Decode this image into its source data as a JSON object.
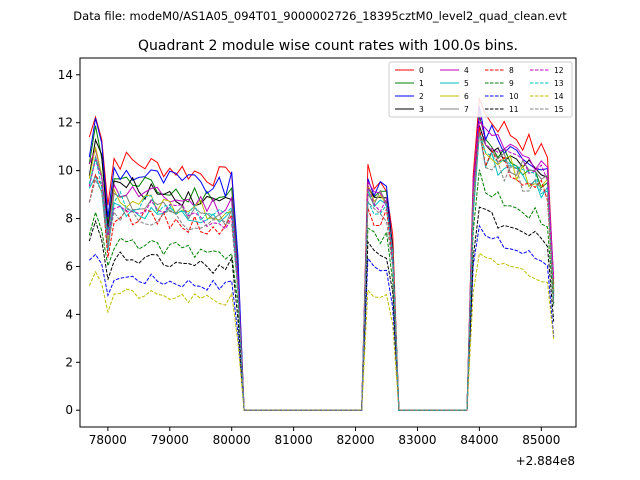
{
  "suptitle": "Data file: modeM0/AS1A05_094T01_9000002726_18395cztM0_level2_quad_clean.evt",
  "chart_data": {
    "type": "line",
    "title": "Quadrant 2 module wise count rates with 100.0s bins.",
    "xlabel": "",
    "ylabel": "",
    "x_offset_label": "+2.884e8",
    "xlim": [
      77550,
      85560
    ],
    "ylim": [
      -0.7,
      14.7
    ],
    "xticks": [
      78000,
      79000,
      80000,
      81000,
      82000,
      83000,
      84000,
      85000
    ],
    "xtick_labels": [
      "78000",
      "79000",
      "80000",
      "81000",
      "82000",
      "83000",
      "84000",
      "85000"
    ],
    "yticks": [
      0,
      2,
      4,
      6,
      8,
      10,
      12,
      14
    ],
    "ytick_labels": [
      "0",
      "2",
      "4",
      "6",
      "8",
      "10",
      "12",
      "14"
    ],
    "grid": false,
    "legend": {
      "placement": "top-right",
      "columns": 4
    },
    "segments": [
      {
        "start": 77700,
        "end": 80100
      },
      {
        "start": 82200,
        "end": 82600
      },
      {
        "start": 83900,
        "end": 85200
      }
    ],
    "series": [
      {
        "name": "0",
        "color": "#ff0000",
        "dash": "solid",
        "s1": 10.5,
        "s2": 9.8,
        "s3": 12.3
      },
      {
        "name": "1",
        "color": "#008000",
        "dash": "solid",
        "s1": 9.6,
        "s2": 9.3,
        "s3": 11.0
      },
      {
        "name": "2",
        "color": "#0000ff",
        "dash": "solid",
        "s1": 10.0,
        "s2": 9.6,
        "s3": 11.6
      },
      {
        "name": "3",
        "color": "#000000",
        "dash": "solid",
        "s1": 9.4,
        "s2": 9.2,
        "s3": 11.1
      },
      {
        "name": "4",
        "color": "#bf00bf",
        "dash": "solid",
        "s1": 9.2,
        "s2": 9.3,
        "s3": 11.5
      },
      {
        "name": "5",
        "color": "#00bfbf",
        "dash": "solid",
        "s1": 8.4,
        "s2": 8.9,
        "s3": 10.5
      },
      {
        "name": "6",
        "color": "#bfbf00",
        "dash": "solid",
        "s1": 8.9,
        "s2": 9.0,
        "s3": 10.8
      },
      {
        "name": "7",
        "color": "#808080",
        "dash": "solid",
        "s1": 8.7,
        "s2": 9.1,
        "s3": 10.9
      },
      {
        "name": "8",
        "color": "#ff0000",
        "dash": "dashed",
        "s1": 8.2,
        "s2": 8.4,
        "s3": 10.6
      },
      {
        "name": "9",
        "color": "#008000",
        "dash": "dashed",
        "s1": 7.0,
        "s2": 7.5,
        "s3": 9.2
      },
      {
        "name": "10",
        "color": "#0000ff",
        "dash": "dashed",
        "s1": 5.6,
        "s2": 6.2,
        "s3": 7.2
      },
      {
        "name": "11",
        "color": "#000000",
        "dash": "dashed",
        "s1": 6.4,
        "s2": 6.8,
        "s3": 8.1
      },
      {
        "name": "12",
        "color": "#bf00bf",
        "dash": "dashed",
        "s1": 8.6,
        "s2": 9.0,
        "s3": 11.3
      },
      {
        "name": "13",
        "color": "#00bfbf",
        "dash": "dashed",
        "s1": 8.8,
        "s2": 8.8,
        "s3": 10.7
      },
      {
        "name": "14",
        "color": "#bfbf00",
        "dash": "dashed",
        "s1": 4.9,
        "s2": 5.0,
        "s3": 6.2
      },
      {
        "name": "15",
        "color": "#808080",
        "dash": "dashed",
        "s1": 8.3,
        "s2": 8.6,
        "s3": 10.4
      }
    ]
  }
}
